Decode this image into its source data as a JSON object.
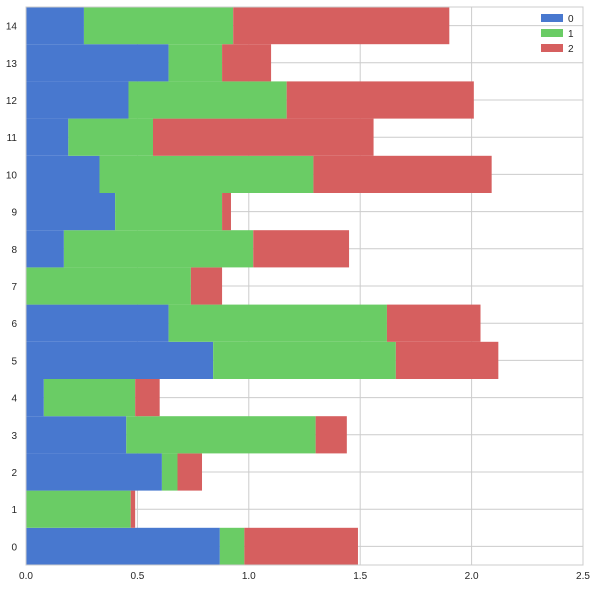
{
  "chart_data": {
    "type": "bar",
    "orientation": "horizontal",
    "stacked": true,
    "title": "",
    "xlabel": "",
    "ylabel": "",
    "xlim": [
      0,
      2.5
    ],
    "ylim": [
      -0.5,
      14.5
    ],
    "grid": true,
    "legend_position": "top-right",
    "x_ticks": [
      "0.0",
      "0.5",
      "1.0",
      "1.5",
      "2.0",
      "2.5"
    ],
    "x_tick_values": [
      0,
      0.5,
      1.0,
      1.5,
      2.0,
      2.5
    ],
    "y_ticks": [
      "0",
      "1",
      "2",
      "3",
      "4",
      "5",
      "6",
      "7",
      "8",
      "9",
      "10",
      "11",
      "12",
      "13",
      "14"
    ],
    "categories": [
      0,
      1,
      2,
      3,
      4,
      5,
      6,
      7,
      8,
      9,
      10,
      11,
      12,
      13,
      14
    ],
    "series": [
      {
        "name": "0",
        "color": "#4878cf",
        "values": [
          0.87,
          0.0,
          0.61,
          0.45,
          0.08,
          0.84,
          0.64,
          0.0,
          0.17,
          0.4,
          0.33,
          0.19,
          0.46,
          0.64,
          0.26
        ]
      },
      {
        "name": "1",
        "color": "#6acc65",
        "values": [
          0.11,
          0.47,
          0.07,
          0.85,
          0.41,
          0.82,
          0.98,
          0.74,
          0.85,
          0.48,
          0.96,
          0.38,
          0.71,
          0.24,
          0.67
        ]
      },
      {
        "name": "2",
        "color": "#d65f5f",
        "values": [
          0.51,
          0.02,
          0.11,
          0.14,
          0.11,
          0.46,
          0.42,
          0.14,
          0.43,
          0.04,
          0.8,
          0.99,
          0.84,
          0.22,
          0.97
        ]
      }
    ]
  }
}
